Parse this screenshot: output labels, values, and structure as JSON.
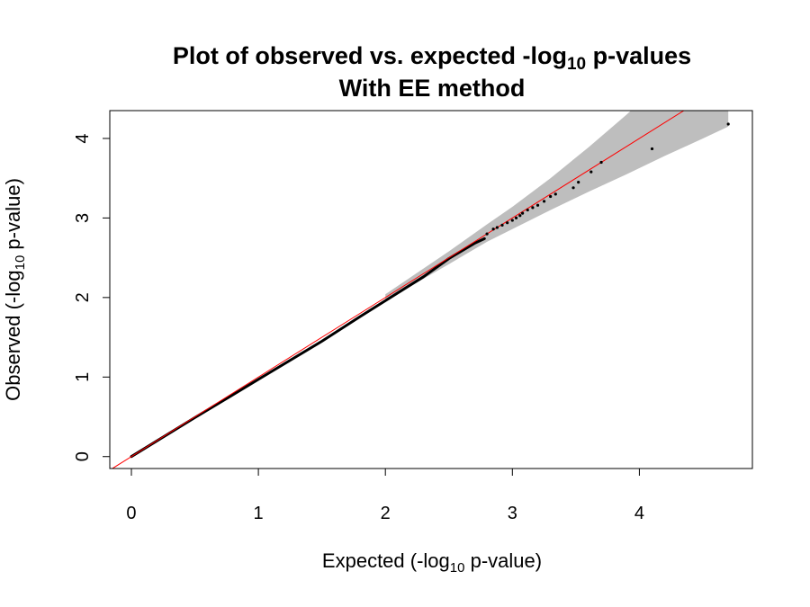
{
  "chart_data": {
    "type": "scatter",
    "title": {
      "line1_prefix": "Plot of observed vs. expected -log",
      "line1_sub": "10",
      "line1_suffix": " p-values",
      "line2": "With EE method"
    },
    "xlabel": {
      "prefix": "Expected (-log",
      "sub": "10",
      "suffix": " p-value)"
    },
    "ylabel": {
      "prefix": "Observed (-log",
      "sub": "10",
      "suffix": " p-value)"
    },
    "xlim": [
      -0.17,
      4.89
    ],
    "ylim": [
      -0.15,
      4.35
    ],
    "x_ticks": [
      0,
      1,
      2,
      3,
      4
    ],
    "y_ticks": [
      0,
      1,
      2,
      3,
      4
    ],
    "x_tick_labels": [
      "0",
      "1",
      "2",
      "3",
      "4"
    ],
    "y_tick_labels": [
      "0",
      "1",
      "2",
      "3",
      "4"
    ],
    "grid": false,
    "reference_line": {
      "slope": 1,
      "intercept": 0,
      "color": "#ff0000"
    },
    "confidence_band": {
      "color": "#bebebe",
      "x": [
        2.0,
        2.5,
        2.8,
        3.0,
        3.3,
        3.6,
        3.9,
        4.2,
        4.5,
        4.7
      ],
      "lower": [
        1.96,
        2.42,
        2.7,
        2.86,
        3.1,
        3.33,
        3.55,
        3.78,
        4.0,
        4.15
      ],
      "upper": [
        2.04,
        2.58,
        2.92,
        3.14,
        3.5,
        3.89,
        4.3,
        4.75,
        5.2,
        5.5
      ]
    },
    "dense_trend": {
      "x": [
        0,
        0.5,
        1.0,
        1.5,
        1.8,
        2.0,
        2.3,
        2.5,
        2.7,
        2.78
      ],
      "y": [
        0,
        0.49,
        0.97,
        1.45,
        1.76,
        1.96,
        2.26,
        2.49,
        2.68,
        2.74
      ]
    },
    "points": [
      [
        2.8,
        2.8
      ],
      [
        2.85,
        2.86
      ],
      [
        2.88,
        2.88
      ],
      [
        2.92,
        2.91
      ],
      [
        2.96,
        2.94
      ],
      [
        3.0,
        2.97
      ],
      [
        3.03,
        3.0
      ],
      [
        3.06,
        3.03
      ],
      [
        3.08,
        3.06
      ],
      [
        3.12,
        3.1
      ],
      [
        3.16,
        3.13
      ],
      [
        3.2,
        3.16
      ],
      [
        3.25,
        3.21
      ],
      [
        3.3,
        3.27
      ],
      [
        3.34,
        3.3
      ],
      [
        3.48,
        3.38
      ],
      [
        3.52,
        3.45
      ],
      [
        3.62,
        3.58
      ],
      [
        3.7,
        3.7
      ],
      [
        4.1,
        3.87
      ],
      [
        4.7,
        4.18
      ]
    ],
    "point_color": "#000000"
  }
}
